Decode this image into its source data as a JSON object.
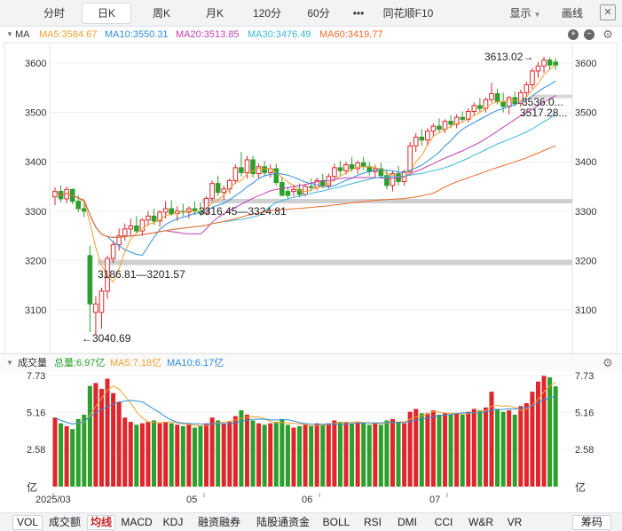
{
  "top_tabs": [
    {
      "label": "分时",
      "active": false
    },
    {
      "label": "日K",
      "active": true
    },
    {
      "label": "周K",
      "active": false
    },
    {
      "label": "月K",
      "active": false
    },
    {
      "label": "120分",
      "active": false
    },
    {
      "label": "60分",
      "active": false
    },
    {
      "label": "•••",
      "active": false
    },
    {
      "label": "同花顺F10",
      "active": false
    }
  ],
  "right_tabs": {
    "display": "显示",
    "draw": "画线",
    "close": "✕"
  },
  "ma_header": {
    "tag": "MA",
    "items": [
      {
        "label": "MA5:3584.67",
        "color": "#f0a030"
      },
      {
        "label": "MA10:3550.31",
        "color": "#2f8fd8"
      },
      {
        "label": "MA20:3513.85",
        "color": "#c43fb5"
      },
      {
        "label": "MA30:3476.49",
        "color": "#39b8d6"
      },
      {
        "label": "MA60:3419.77",
        "color": "#ee6b2a"
      }
    ]
  },
  "price_axis": {
    "ticks": [
      "3600",
      "3500",
      "3400",
      "3300",
      "3200",
      "3100"
    ]
  },
  "annotations": {
    "high": "3613.02",
    "low": "3040.69",
    "gap1": "3316.45—3324.81",
    "gap2": "3186.81—3201.57",
    "label_a": "3536.0...",
    "label_b": "3517.28..."
  },
  "vol_header": {
    "title": "成交量",
    "items": [
      {
        "label": "总量:6.97亿",
        "color": "#2aa02a"
      },
      {
        "label": "MA5:7.18亿",
        "color": "#f0a030"
      },
      {
        "label": "MA10:6.17亿",
        "color": "#2f8fd8"
      }
    ]
  },
  "vol_axis": {
    "ticks": [
      "7.73",
      "5.16",
      "2.58"
    ],
    "unit": "亿"
  },
  "x_labels": [
    "2025/03",
    "05",
    "06",
    "07"
  ],
  "bottom_tabs": [
    "VOL",
    "成交额",
    "均线",
    "MACD",
    "KDJ",
    "融资融券",
    "陆股通资金",
    "BOLL",
    "RSI",
    "DMI",
    "CCI",
    "W&R",
    "VR"
  ],
  "bottom_right": "筹码",
  "colors": {
    "up": "#e0262b",
    "down": "#2ca02c",
    "ma5": "#f0a030",
    "ma10": "#2f8fd8",
    "ma20": "#c43fb5",
    "ma30": "#39b8d6",
    "ma60": "#ee6b2a"
  },
  "chart_data": {
    "type": "candlestick",
    "price_range": [
      3040,
      3660
    ],
    "volume_range": [
      0,
      7.73
    ],
    "x_axis_labels": [
      "2025/03",
      "05",
      "06",
      "07"
    ],
    "candles": [
      [
        3329,
        3348,
        3312,
        3340,
        4.8,
        1
      ],
      [
        3340,
        3352,
        3318,
        3325,
        4.4,
        0
      ],
      [
        3325,
        3350,
        3316,
        3344,
        4.2,
        1
      ],
      [
        3344,
        3346,
        3314,
        3320,
        4.0,
        0
      ],
      [
        3320,
        3332,
        3298,
        3305,
        4.7,
        0
      ],
      [
        3305,
        3318,
        3288,
        3300,
        5.0,
        0
      ],
      [
        3210,
        3230,
        3055,
        3112,
        7.0,
        0
      ],
      [
        3112,
        3128,
        3050,
        3095,
        7.2,
        1
      ],
      [
        3095,
        3145,
        3062,
        3138,
        6.8,
        1
      ],
      [
        3138,
        3210,
        3122,
        3204,
        7.5,
        1
      ],
      [
        3204,
        3240,
        3195,
        3232,
        6.5,
        1
      ],
      [
        3232,
        3265,
        3220,
        3250,
        5.9,
        1
      ],
      [
        3250,
        3275,
        3240,
        3264,
        4.8,
        1
      ],
      [
        3264,
        3285,
        3250,
        3270,
        4.5,
        1
      ],
      [
        3270,
        3290,
        3256,
        3260,
        4.3,
        0
      ],
      [
        3260,
        3285,
        3250,
        3282,
        4.4,
        1
      ],
      [
        3282,
        3300,
        3270,
        3290,
        4.5,
        1
      ],
      [
        3290,
        3305,
        3272,
        3280,
        4.6,
        0
      ],
      [
        3280,
        3302,
        3268,
        3298,
        4.4,
        1
      ],
      [
        3298,
        3320,
        3285,
        3305,
        4.5,
        1
      ],
      [
        3305,
        3322,
        3290,
        3295,
        4.4,
        0
      ],
      [
        3295,
        3310,
        3280,
        3300,
        4.3,
        1
      ],
      [
        3300,
        3315,
        3290,
        3298,
        4.2,
        0
      ],
      [
        3298,
        3310,
        3285,
        3305,
        4.3,
        1
      ],
      [
        3305,
        3320,
        3292,
        3300,
        4.1,
        0
      ],
      [
        3300,
        3318,
        3290,
        3296,
        4.2,
        0
      ],
      [
        3296,
        3330,
        3292,
        3326,
        4.4,
        1
      ],
      [
        3326,
        3362,
        3320,
        3356,
        4.8,
        1
      ],
      [
        3356,
        3372,
        3330,
        3338,
        4.6,
        0
      ],
      [
        3338,
        3352,
        3322,
        3345,
        4.4,
        1
      ],
      [
        3345,
        3366,
        3336,
        3362,
        4.5,
        1
      ],
      [
        3362,
        3395,
        3355,
        3388,
        4.9,
        1
      ],
      [
        3388,
        3420,
        3370,
        3378,
        5.3,
        0
      ],
      [
        3378,
        3412,
        3366,
        3404,
        5.0,
        1
      ],
      [
        3404,
        3412,
        3368,
        3376,
        4.6,
        0
      ],
      [
        3376,
        3396,
        3366,
        3390,
        4.4,
        1
      ],
      [
        3390,
        3402,
        3372,
        3378,
        4.3,
        0
      ],
      [
        3378,
        3395,
        3368,
        3386,
        4.4,
        1
      ],
      [
        3386,
        3396,
        3352,
        3358,
        4.5,
        0
      ],
      [
        3358,
        3368,
        3330,
        3332,
        4.7,
        0
      ],
      [
        3332,
        3348,
        3326,
        3340,
        4.3,
        0
      ],
      [
        3340,
        3354,
        3330,
        3344,
        4.1,
        1
      ],
      [
        3344,
        3356,
        3328,
        3334,
        4.2,
        0
      ],
      [
        3334,
        3355,
        3330,
        3350,
        4.3,
        1
      ],
      [
        3350,
        3366,
        3340,
        3348,
        4.2,
        0
      ],
      [
        3348,
        3368,
        3342,
        3362,
        4.4,
        1
      ],
      [
        3362,
        3376,
        3346,
        3352,
        4.3,
        0
      ],
      [
        3352,
        3376,
        3346,
        3370,
        4.4,
        1
      ],
      [
        3370,
        3396,
        3360,
        3388,
        4.6,
        1
      ],
      [
        3388,
        3402,
        3372,
        3382,
        4.5,
        0
      ],
      [
        3382,
        3400,
        3374,
        3394,
        4.5,
        1
      ],
      [
        3394,
        3410,
        3380,
        3386,
        4.4,
        0
      ],
      [
        3386,
        3402,
        3376,
        3398,
        4.5,
        1
      ],
      [
        3398,
        3410,
        3384,
        3390,
        4.4,
        0
      ],
      [
        3390,
        3400,
        3372,
        3380,
        4.3,
        0
      ],
      [
        3380,
        3394,
        3366,
        3386,
        4.4,
        1
      ],
      [
        3386,
        3398,
        3366,
        3372,
        4.3,
        0
      ],
      [
        3372,
        3384,
        3344,
        3352,
        4.6,
        0
      ],
      [
        3352,
        3382,
        3340,
        3376,
        4.7,
        1
      ],
      [
        3376,
        3392,
        3352,
        3360,
        4.5,
        0
      ],
      [
        3360,
        3384,
        3352,
        3380,
        4.4,
        1
      ],
      [
        3380,
        3440,
        3376,
        3432,
        5.2,
        1
      ],
      [
        3432,
        3458,
        3420,
        3450,
        5.4,
        1
      ],
      [
        3450,
        3466,
        3432,
        3444,
        5.1,
        0
      ],
      [
        3444,
        3468,
        3432,
        3462,
        5.1,
        1
      ],
      [
        3462,
        3478,
        3450,
        3472,
        5.3,
        1
      ],
      [
        3472,
        3488,
        3458,
        3466,
        5.0,
        0
      ],
      [
        3466,
        3486,
        3458,
        3482,
        5.1,
        1
      ],
      [
        3482,
        3494,
        3468,
        3476,
        5.0,
        0
      ],
      [
        3476,
        3496,
        3468,
        3490,
        5.1,
        1
      ],
      [
        3490,
        3502,
        3480,
        3486,
        5.0,
        0
      ],
      [
        3486,
        3508,
        3480,
        3502,
        5.2,
        1
      ],
      [
        3502,
        3520,
        3494,
        3514,
        5.4,
        1
      ],
      [
        3514,
        3530,
        3500,
        3508,
        5.3,
        0
      ],
      [
        3508,
        3530,
        3500,
        3526,
        5.5,
        1
      ],
      [
        3526,
        3560,
        3520,
        3538,
        6.6,
        1
      ],
      [
        3538,
        3548,
        3516,
        3522,
        5.4,
        0
      ],
      [
        3522,
        3540,
        3500,
        3512,
        5.2,
        0
      ],
      [
        3512,
        3534,
        3496,
        3530,
        5.3,
        1
      ],
      [
        3530,
        3542,
        3512,
        3518,
        5.0,
        0
      ],
      [
        3518,
        3546,
        3512,
        3540,
        5.6,
        1
      ],
      [
        3540,
        3562,
        3530,
        3556,
        5.8,
        1
      ],
      [
        3556,
        3590,
        3548,
        3584,
        6.6,
        1
      ],
      [
        3584,
        3602,
        3570,
        3594,
        7.3,
        1
      ],
      [
        3594,
        3613,
        3580,
        3606,
        7.7,
        1
      ],
      [
        3606,
        3612,
        3588,
        3596,
        7.6,
        0
      ],
      [
        3596,
        3610,
        3586,
        3602,
        6.97,
        0
      ]
    ]
  }
}
